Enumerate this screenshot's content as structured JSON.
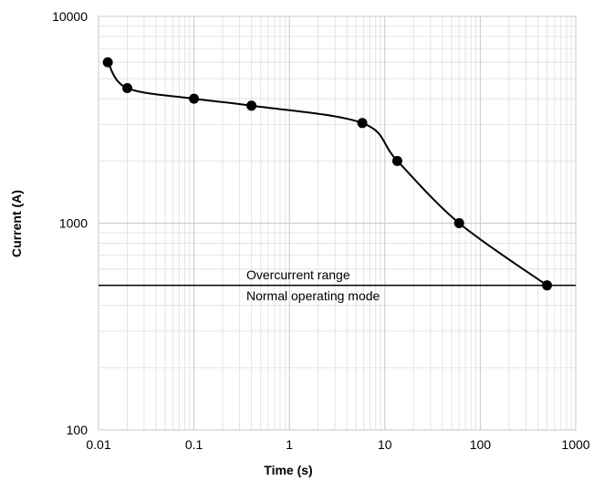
{
  "chart_data": {
    "type": "scatter",
    "x_scale": "log",
    "y_scale": "log",
    "xlabel": "Time (s)",
    "ylabel": "Current (A)",
    "xlim": [
      0.01,
      1000
    ],
    "ylim": [
      100,
      10000
    ],
    "x_tick_labels": [
      "0.01",
      "0.1",
      "1",
      "10",
      "100",
      "1000"
    ],
    "y_tick_labels": [
      "100",
      "1000",
      "10000"
    ],
    "grid": true,
    "series": [
      {
        "x": [
          0.0125,
          0.02,
          0.1,
          0.4,
          5.8,
          13.5,
          60,
          500
        ],
        "y": [
          6000,
          4500,
          4000,
          3700,
          3050,
          2000,
          1000,
          500
        ],
        "color": "#000000",
        "marker": "circle",
        "line": "smooth"
      }
    ],
    "threshold": {
      "y": 500,
      "color": "#000000"
    },
    "annotations": [
      "Overcurrent range",
      "Normal operating mode"
    ]
  }
}
